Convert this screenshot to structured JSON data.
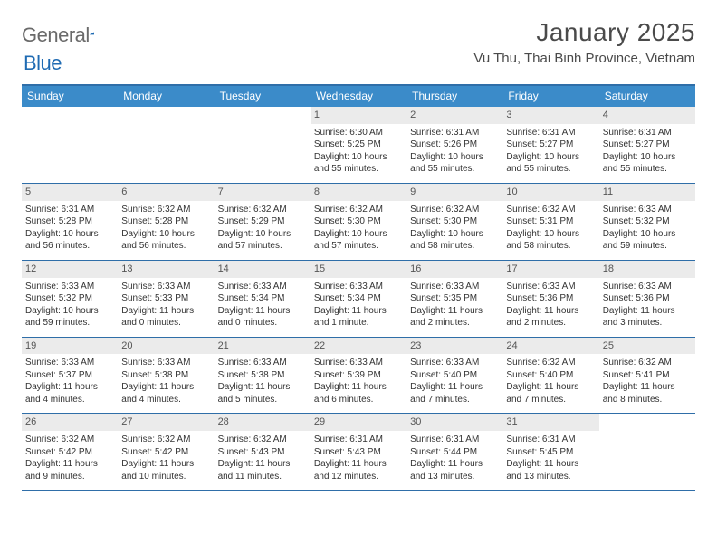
{
  "brand": {
    "name_part1": "General",
    "name_part2": "Blue"
  },
  "header": {
    "title": "January 2025",
    "location": "Vu Thu, Thai Binh Province, Vietnam"
  },
  "colors": {
    "header_bar": "#3b8bc9",
    "rule": "#2f6ea8",
    "daynum_bg": "#ebebeb",
    "text": "#333333",
    "muted": "#6a6a6a",
    "logo_blue": "#1f6bb3"
  },
  "weekdays": [
    "Sunday",
    "Monday",
    "Tuesday",
    "Wednesday",
    "Thursday",
    "Friday",
    "Saturday"
  ],
  "weeks": [
    [
      null,
      null,
      null,
      {
        "n": "1",
        "sr": "6:30 AM",
        "ss": "5:25 PM",
        "dl": "10 hours and 55 minutes."
      },
      {
        "n": "2",
        "sr": "6:31 AM",
        "ss": "5:26 PM",
        "dl": "10 hours and 55 minutes."
      },
      {
        "n": "3",
        "sr": "6:31 AM",
        "ss": "5:27 PM",
        "dl": "10 hours and 55 minutes."
      },
      {
        "n": "4",
        "sr": "6:31 AM",
        "ss": "5:27 PM",
        "dl": "10 hours and 55 minutes."
      }
    ],
    [
      {
        "n": "5",
        "sr": "6:31 AM",
        "ss": "5:28 PM",
        "dl": "10 hours and 56 minutes."
      },
      {
        "n": "6",
        "sr": "6:32 AM",
        "ss": "5:28 PM",
        "dl": "10 hours and 56 minutes."
      },
      {
        "n": "7",
        "sr": "6:32 AM",
        "ss": "5:29 PM",
        "dl": "10 hours and 57 minutes."
      },
      {
        "n": "8",
        "sr": "6:32 AM",
        "ss": "5:30 PM",
        "dl": "10 hours and 57 minutes."
      },
      {
        "n": "9",
        "sr": "6:32 AM",
        "ss": "5:30 PM",
        "dl": "10 hours and 58 minutes."
      },
      {
        "n": "10",
        "sr": "6:32 AM",
        "ss": "5:31 PM",
        "dl": "10 hours and 58 minutes."
      },
      {
        "n": "11",
        "sr": "6:33 AM",
        "ss": "5:32 PM",
        "dl": "10 hours and 59 minutes."
      }
    ],
    [
      {
        "n": "12",
        "sr": "6:33 AM",
        "ss": "5:32 PM",
        "dl": "10 hours and 59 minutes."
      },
      {
        "n": "13",
        "sr": "6:33 AM",
        "ss": "5:33 PM",
        "dl": "11 hours and 0 minutes."
      },
      {
        "n": "14",
        "sr": "6:33 AM",
        "ss": "5:34 PM",
        "dl": "11 hours and 0 minutes."
      },
      {
        "n": "15",
        "sr": "6:33 AM",
        "ss": "5:34 PM",
        "dl": "11 hours and 1 minute."
      },
      {
        "n": "16",
        "sr": "6:33 AM",
        "ss": "5:35 PM",
        "dl": "11 hours and 2 minutes."
      },
      {
        "n": "17",
        "sr": "6:33 AM",
        "ss": "5:36 PM",
        "dl": "11 hours and 2 minutes."
      },
      {
        "n": "18",
        "sr": "6:33 AM",
        "ss": "5:36 PM",
        "dl": "11 hours and 3 minutes."
      }
    ],
    [
      {
        "n": "19",
        "sr": "6:33 AM",
        "ss": "5:37 PM",
        "dl": "11 hours and 4 minutes."
      },
      {
        "n": "20",
        "sr": "6:33 AM",
        "ss": "5:38 PM",
        "dl": "11 hours and 4 minutes."
      },
      {
        "n": "21",
        "sr": "6:33 AM",
        "ss": "5:38 PM",
        "dl": "11 hours and 5 minutes."
      },
      {
        "n": "22",
        "sr": "6:33 AM",
        "ss": "5:39 PM",
        "dl": "11 hours and 6 minutes."
      },
      {
        "n": "23",
        "sr": "6:33 AM",
        "ss": "5:40 PM",
        "dl": "11 hours and 7 minutes."
      },
      {
        "n": "24",
        "sr": "6:32 AM",
        "ss": "5:40 PM",
        "dl": "11 hours and 7 minutes."
      },
      {
        "n": "25",
        "sr": "6:32 AM",
        "ss": "5:41 PM",
        "dl": "11 hours and 8 minutes."
      }
    ],
    [
      {
        "n": "26",
        "sr": "6:32 AM",
        "ss": "5:42 PM",
        "dl": "11 hours and 9 minutes."
      },
      {
        "n": "27",
        "sr": "6:32 AM",
        "ss": "5:42 PM",
        "dl": "11 hours and 10 minutes."
      },
      {
        "n": "28",
        "sr": "6:32 AM",
        "ss": "5:43 PM",
        "dl": "11 hours and 11 minutes."
      },
      {
        "n": "29",
        "sr": "6:31 AM",
        "ss": "5:43 PM",
        "dl": "11 hours and 12 minutes."
      },
      {
        "n": "30",
        "sr": "6:31 AM",
        "ss": "5:44 PM",
        "dl": "11 hours and 13 minutes."
      },
      {
        "n": "31",
        "sr": "6:31 AM",
        "ss": "5:45 PM",
        "dl": "11 hours and 13 minutes."
      },
      null
    ]
  ],
  "labels": {
    "sunrise": "Sunrise:",
    "sunset": "Sunset:",
    "daylight": "Daylight:"
  }
}
